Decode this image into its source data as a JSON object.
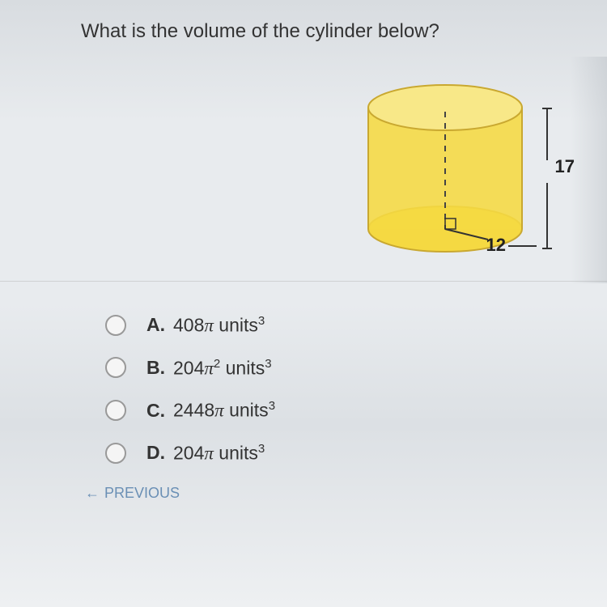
{
  "question": "What is the volume of the cylinder below?",
  "cylinder": {
    "height_label": "17",
    "radius_label": "12",
    "fill_color": "#f5d942",
    "top_fill": "#f8e888",
    "stroke_color": "#c9a830"
  },
  "options": [
    {
      "letter": "A.",
      "value_html": "408<span class='pi'>π</span> units<sup>3</sup>"
    },
    {
      "letter": "B.",
      "value_html": "204<span class='pi'>π</span><sup>2</sup> units<sup>3</sup>"
    },
    {
      "letter": "C.",
      "value_html": "2448<span class='pi'>π</span> units<sup>3</sup>"
    },
    {
      "letter": "D.",
      "value_html": "204<span class='pi'>π</span> units<sup>3</sup>"
    }
  ],
  "nav": {
    "previous": "PREVIOUS"
  }
}
